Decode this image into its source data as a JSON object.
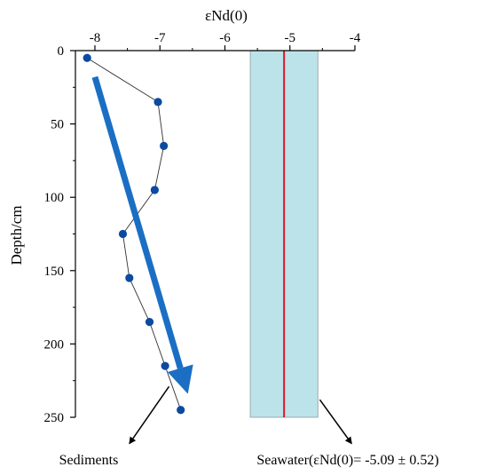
{
  "chart_data": {
    "type": "scatter",
    "title": "",
    "xlabel": "εNd(0)",
    "ylabel": "Depth/cm",
    "x_axis_position": "top",
    "y_axis_inverted": true,
    "xlim": [
      -8.3,
      -4
    ],
    "ylim": [
      0,
      250
    ],
    "x_ticks": [
      -8,
      -7,
      -6,
      -5,
      -4
    ],
    "y_ticks": [
      0,
      50,
      100,
      150,
      200,
      250
    ],
    "grid": false,
    "series": [
      {
        "name": "Sediments",
        "points": [
          {
            "x": -8.12,
            "y": 5
          },
          {
            "x": -7.03,
            "y": 35
          },
          {
            "x": -6.94,
            "y": 65
          },
          {
            "x": -7.08,
            "y": 95
          },
          {
            "x": -7.57,
            "y": 125
          },
          {
            "x": -7.47,
            "y": 155
          },
          {
            "x": -7.16,
            "y": 185
          },
          {
            "x": -6.92,
            "y": 215
          },
          {
            "x": -6.68,
            "y": 245
          }
        ],
        "color": "#0a4aa0",
        "connected": true
      }
    ],
    "seawater": {
      "value": -5.09,
      "uncertainty": 0.52,
      "band_color": "#bde3ea",
      "line_color": "#e0142a"
    },
    "trend_arrow": {
      "from": {
        "x": -8.0,
        "y": 18
      },
      "to": {
        "x": -6.57,
        "y": 234
      },
      "color": "#1a6fc4"
    },
    "annotations": [
      {
        "text": "Sediments",
        "arrow_from": {
          "x": -6.86,
          "y": 229
        },
        "arrow_to": {
          "x": -7.47,
          "y": 268
        }
      },
      {
        "text": "Seawater(εNd(0)= -5.09 ± 0.52)",
        "arrow_from": {
          "x": -4.54,
          "y": 238
        },
        "arrow_to": {
          "x": -4.05,
          "y": 268
        }
      }
    ]
  }
}
